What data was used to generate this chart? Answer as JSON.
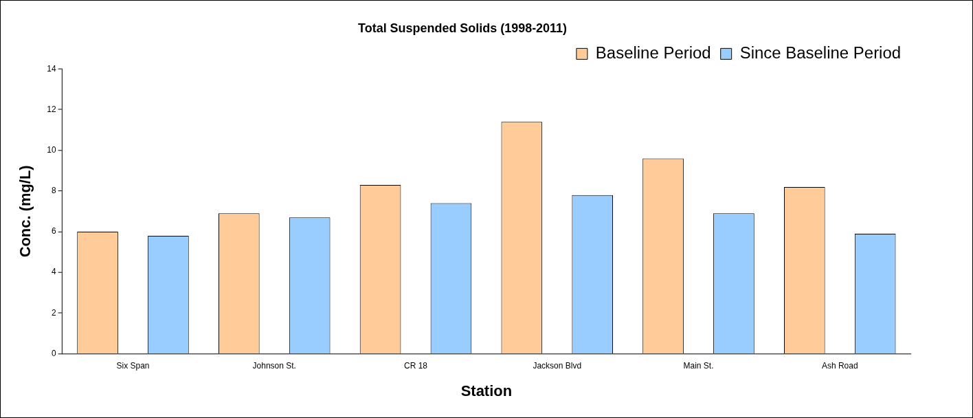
{
  "chart_data": {
    "type": "bar",
    "title": "Total Suspended Solids (1998-2011)",
    "xlabel": "Station",
    "ylabel": "Conc. (mg/L)",
    "categories": [
      "Six Span",
      "Johnson St.",
      "CR 18",
      "Jackson Blvd",
      "Main St.",
      "Ash Road"
    ],
    "series": [
      {
        "name": "Baseline Period",
        "color": "#ffcc99",
        "values": [
          6.0,
          6.9,
          8.3,
          11.4,
          9.6,
          8.2
        ]
      },
      {
        "name": "Since Baseline Period",
        "color": "#99ccff",
        "values": [
          5.8,
          6.7,
          7.4,
          7.8,
          6.9,
          5.9
        ]
      }
    ],
    "ylim": [
      0,
      14
    ],
    "yticks": [
      0,
      2,
      4,
      6,
      8,
      10,
      12,
      14
    ],
    "grid": false,
    "legend": "top right"
  }
}
